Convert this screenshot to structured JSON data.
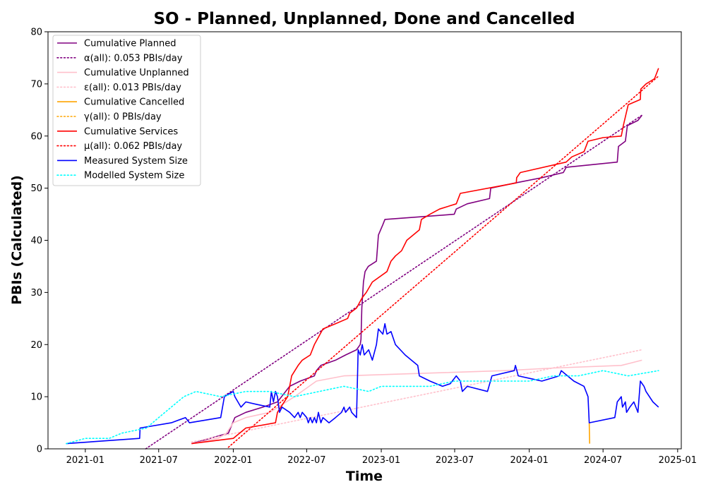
{
  "chart_data": {
    "type": "line",
    "title": "SO - Planned, Unplanned, Done  and Cancelled",
    "xlabel": "Time",
    "ylabel": "PBIs (Calculated)",
    "xlim": [
      "2020-10-01",
      "2025-01-10"
    ],
    "ylim": [
      0,
      80
    ],
    "x_ticks": [
      "2021-01",
      "2021-07",
      "2022-01",
      "2022-07",
      "2023-01",
      "2023-07",
      "2024-01",
      "2024-07",
      "2025-01"
    ],
    "y_ticks": [
      0,
      10,
      20,
      30,
      40,
      50,
      60,
      70,
      80
    ],
    "grid": false,
    "legend_position": "top-left",
    "series": [
      {
        "name": "Cumulative Planned",
        "style": "solid",
        "color": "#800080",
        "points": [
          [
            "2021-09-20",
            1
          ],
          [
            "2021-12-20",
            3
          ],
          [
            "2022-01-05",
            6
          ],
          [
            "2022-02-01",
            7
          ],
          [
            "2022-03-15",
            8
          ],
          [
            "2022-04-20",
            9
          ],
          [
            "2022-05-20",
            12
          ],
          [
            "2022-06-15",
            13
          ],
          [
            "2022-07-20",
            14
          ],
          [
            "2022-07-25",
            15
          ],
          [
            "2022-08-05",
            16
          ],
          [
            "2022-09-10",
            17
          ],
          [
            "2022-10-05",
            18
          ],
          [
            "2022-11-01",
            19
          ],
          [
            "2022-11-10",
            20
          ],
          [
            "2022-11-12",
            21
          ],
          [
            "2022-11-14",
            27
          ],
          [
            "2022-11-18",
            32
          ],
          [
            "2022-11-22",
            34
          ],
          [
            "2022-11-30",
            35
          ],
          [
            "2022-12-20",
            36
          ],
          [
            "2022-12-25",
            41
          ],
          [
            "2023-01-05",
            43
          ],
          [
            "2023-01-10",
            44
          ],
          [
            "2023-06-30",
            45
          ],
          [
            "2023-07-05",
            46
          ],
          [
            "2023-08-01",
            47
          ],
          [
            "2023-09-25",
            48
          ],
          [
            "2023-09-28",
            50
          ],
          [
            "2023-11-28",
            51
          ],
          [
            "2024-02-01",
            52
          ],
          [
            "2024-03-25",
            53
          ],
          [
            "2024-04-01",
            54
          ],
          [
            "2024-08-05",
            55
          ],
          [
            "2024-08-08",
            58
          ],
          [
            "2024-08-25",
            59
          ],
          [
            "2024-08-30",
            62
          ],
          [
            "2024-09-25",
            63
          ],
          [
            "2024-10-05",
            64
          ]
        ]
      },
      {
        "name": "α(all): 0.053 PBIs/day",
        "style": "dotted",
        "color": "#800080",
        "points": [
          [
            "2021-05-30",
            0
          ],
          [
            "2024-10-05",
            64
          ]
        ]
      },
      {
        "name": "Cumulative Unplanned",
        "style": "solid",
        "color": "#ffc0cb",
        "points": [
          [
            "2021-09-20",
            1
          ],
          [
            "2021-11-25",
            2
          ],
          [
            "2021-12-15",
            3
          ],
          [
            "2022-01-01",
            5
          ],
          [
            "2022-02-01",
            6
          ],
          [
            "2022-04-01",
            7
          ],
          [
            "2022-06-01",
            10
          ],
          [
            "2022-07-25",
            13
          ],
          [
            "2022-10-01",
            14
          ],
          [
            "2023-06-01",
            14.6
          ],
          [
            "2023-11-01",
            15
          ],
          [
            "2024-03-01",
            15.5
          ],
          [
            "2024-08-15",
            16
          ],
          [
            "2024-10-05",
            17
          ]
        ]
      },
      {
        "name": "ε(all): 0.013 PBIs/day",
        "style": "dotted",
        "color": "#ffc0cb",
        "points": [
          [
            "2021-09-20",
            1.3
          ],
          [
            "2024-10-05",
            19
          ]
        ]
      },
      {
        "name": "Cumulative Cancelled",
        "style": "solid",
        "color": "#ffa500",
        "points": [
          [
            "2024-05-28",
            5
          ],
          [
            "2024-05-29",
            1
          ]
        ]
      },
      {
        "name": "γ(all): 0 PBIs/day",
        "style": "dotted",
        "color": "#ffa500",
        "points": []
      },
      {
        "name": "Cumulative Services",
        "style": "solid",
        "color": "#ff0000",
        "points": [
          [
            "2021-09-20",
            1
          ],
          [
            "2022-01-01",
            2
          ],
          [
            "2022-02-01",
            4
          ],
          [
            "2022-04-15",
            5
          ],
          [
            "2022-04-20",
            7
          ],
          [
            "2022-05-15",
            10
          ],
          [
            "2022-05-20",
            12
          ],
          [
            "2022-05-25",
            14
          ],
          [
            "2022-06-10",
            16
          ],
          [
            "2022-06-20",
            17
          ],
          [
            "2022-07-10",
            18
          ],
          [
            "2022-07-20",
            20
          ],
          [
            "2022-08-10",
            23
          ],
          [
            "2022-09-10",
            24
          ],
          [
            "2022-10-10",
            25
          ],
          [
            "2022-10-15",
            26
          ],
          [
            "2022-11-01",
            27
          ],
          [
            "2022-11-15",
            29
          ],
          [
            "2022-11-25",
            30
          ],
          [
            "2022-12-10",
            32
          ],
          [
            "2023-01-15",
            34
          ],
          [
            "2023-01-25",
            36
          ],
          [
            "2023-02-05",
            37
          ],
          [
            "2023-02-20",
            38
          ],
          [
            "2023-03-05",
            40
          ],
          [
            "2023-04-05",
            42
          ],
          [
            "2023-04-10",
            44
          ],
          [
            "2023-05-01",
            45
          ],
          [
            "2023-05-25",
            46
          ],
          [
            "2023-07-05",
            47
          ],
          [
            "2023-07-15",
            49
          ],
          [
            "2023-11-30",
            51
          ],
          [
            "2023-12-01",
            52
          ],
          [
            "2023-12-10",
            53
          ],
          [
            "2024-04-01",
            55
          ],
          [
            "2024-04-15",
            56
          ],
          [
            "2024-05-15",
            57
          ],
          [
            "2024-05-25",
            59
          ],
          [
            "2024-07-01",
            59.7
          ],
          [
            "2024-08-15",
            60
          ],
          [
            "2024-08-20",
            62
          ],
          [
            "2024-09-01",
            66
          ],
          [
            "2024-10-01",
            67
          ],
          [
            "2024-10-02",
            69
          ],
          [
            "2024-10-15",
            70
          ],
          [
            "2024-11-05",
            71
          ],
          [
            "2024-11-15",
            73
          ]
        ]
      },
      {
        "name": "μ(all): 0.062 PBIs/day",
        "style": "dotted",
        "color": "#ff0000",
        "points": [
          [
            "2021-12-20",
            0.3
          ],
          [
            "2024-11-15",
            71.5
          ]
        ]
      },
      {
        "name": "Measured System Size",
        "style": "solid",
        "color": "#0000ff",
        "points": [
          [
            "2020-11-15",
            1
          ],
          [
            "2021-05-15",
            2
          ],
          [
            "2021-05-16",
            4
          ],
          [
            "2021-08-01",
            5
          ],
          [
            "2021-09-05",
            6
          ],
          [
            "2021-09-15",
            5
          ],
          [
            "2021-12-01",
            6
          ],
          [
            "2021-12-10",
            10
          ],
          [
            "2022-01-01",
            11
          ],
          [
            "2022-01-05",
            10
          ],
          [
            "2022-01-20",
            8
          ],
          [
            "2022-02-01",
            9
          ],
          [
            "2022-03-01",
            8.5
          ],
          [
            "2022-04-01",
            8
          ],
          [
            "2022-04-05",
            11
          ],
          [
            "2022-04-10",
            9
          ],
          [
            "2022-04-15",
            11
          ],
          [
            "2022-04-20",
            10
          ],
          [
            "2022-04-25",
            7
          ],
          [
            "2022-05-01",
            8
          ],
          [
            "2022-05-20",
            7
          ],
          [
            "2022-06-01",
            6
          ],
          [
            "2022-06-10",
            7
          ],
          [
            "2022-06-15",
            6
          ],
          [
            "2022-06-20",
            7
          ],
          [
            "2022-07-01",
            6
          ],
          [
            "2022-07-05",
            5
          ],
          [
            "2022-07-10",
            6
          ],
          [
            "2022-07-15",
            5
          ],
          [
            "2022-07-20",
            6
          ],
          [
            "2022-07-25",
            5
          ],
          [
            "2022-07-30",
            7
          ],
          [
            "2022-08-05",
            5
          ],
          [
            "2022-08-10",
            6
          ],
          [
            "2022-08-25",
            5
          ],
          [
            "2022-09-10",
            6
          ],
          [
            "2022-09-25",
            7
          ],
          [
            "2022-10-01",
            8
          ],
          [
            "2022-10-05",
            7
          ],
          [
            "2022-10-15",
            8
          ],
          [
            "2022-10-20",
            7
          ],
          [
            "2022-11-01",
            6
          ],
          [
            "2022-11-05",
            19
          ],
          [
            "2022-11-10",
            18
          ],
          [
            "2022-11-15",
            20
          ],
          [
            "2022-11-20",
            18
          ],
          [
            "2022-12-01",
            19
          ],
          [
            "2022-12-10",
            17
          ],
          [
            "2022-12-20",
            20
          ],
          [
            "2022-12-25",
            23
          ],
          [
            "2023-01-05",
            22
          ],
          [
            "2023-01-10",
            24
          ],
          [
            "2023-01-15",
            22
          ],
          [
            "2023-01-25",
            22.5
          ],
          [
            "2023-02-05",
            20
          ],
          [
            "2023-03-01",
            18
          ],
          [
            "2023-04-01",
            16
          ],
          [
            "2023-04-05",
            14
          ],
          [
            "2023-05-01",
            13
          ],
          [
            "2023-06-01",
            12
          ],
          [
            "2023-06-20",
            12.5
          ],
          [
            "2023-07-05",
            14
          ],
          [
            "2023-07-15",
            13
          ],
          [
            "2023-07-20",
            11
          ],
          [
            "2023-08-01",
            12
          ],
          [
            "2023-09-20",
            11
          ],
          [
            "2023-10-01",
            14
          ],
          [
            "2023-11-25",
            15
          ],
          [
            "2023-11-28",
            16
          ],
          [
            "2023-12-05",
            14
          ],
          [
            "2024-02-01",
            13
          ],
          [
            "2024-03-15",
            14
          ],
          [
            "2024-03-20",
            15
          ],
          [
            "2024-04-20",
            13
          ],
          [
            "2024-05-15",
            12
          ],
          [
            "2024-05-25",
            10
          ],
          [
            "2024-05-28",
            5
          ],
          [
            "2024-07-30",
            6
          ],
          [
            "2024-08-05",
            9
          ],
          [
            "2024-08-15",
            10
          ],
          [
            "2024-08-18",
            8
          ],
          [
            "2024-08-25",
            9
          ],
          [
            "2024-08-28",
            7
          ],
          [
            "2024-09-05",
            8
          ],
          [
            "2024-09-15",
            9
          ],
          [
            "2024-09-25",
            7
          ],
          [
            "2024-10-01",
            13
          ],
          [
            "2024-10-10",
            12
          ],
          [
            "2024-10-15",
            11
          ],
          [
            "2024-11-01",
            9
          ],
          [
            "2024-11-15",
            8
          ]
        ]
      },
      {
        "name": "Modelled System Size",
        "style": "dotted",
        "color": "#00ffff",
        "points": [
          [
            "2020-11-15",
            1
          ],
          [
            "2021-01-01",
            2
          ],
          [
            "2021-03-01",
            2
          ],
          [
            "2021-04-01",
            3
          ],
          [
            "2021-06-01",
            4
          ],
          [
            "2021-07-01",
            6
          ],
          [
            "2021-08-01",
            8
          ],
          [
            "2021-09-01",
            10
          ],
          [
            "2021-10-01",
            11
          ],
          [
            "2021-12-01",
            10
          ],
          [
            "2022-02-01",
            11
          ],
          [
            "2022-04-01",
            11
          ],
          [
            "2022-06-01",
            10
          ],
          [
            "2022-08-01",
            11
          ],
          [
            "2022-10-01",
            12
          ],
          [
            "2022-12-01",
            11
          ],
          [
            "2023-01-01",
            12
          ],
          [
            "2023-03-01",
            12
          ],
          [
            "2023-05-01",
            12
          ],
          [
            "2023-07-01",
            13
          ],
          [
            "2023-09-01",
            13
          ],
          [
            "2023-11-01",
            13
          ],
          [
            "2024-01-01",
            13
          ],
          [
            "2024-03-01",
            14
          ],
          [
            "2024-05-01",
            14
          ],
          [
            "2024-07-01",
            15
          ],
          [
            "2024-09-01",
            14
          ],
          [
            "2024-11-15",
            15
          ]
        ]
      }
    ]
  }
}
